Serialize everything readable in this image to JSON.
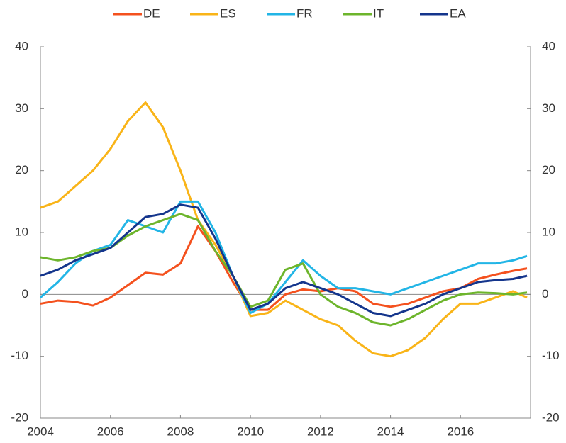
{
  "chart_data": {
    "type": "line",
    "x": [
      2004,
      2004.5,
      2005,
      2005.5,
      2006,
      2006.5,
      2007,
      2007.5,
      2008,
      2008.5,
      2009,
      2009.5,
      2010,
      2010.5,
      2011,
      2011.5,
      2012,
      2012.5,
      2013,
      2013.5,
      2014,
      2014.5,
      2015,
      2015.5,
      2016,
      2016.5,
      2017,
      2017.5,
      2017.9
    ],
    "series": [
      {
        "name": "DE",
        "color": "#f4511e",
        "values": [
          -1.5,
          -1,
          -1.2,
          -1.8,
          -0.5,
          1.5,
          3.5,
          3.2,
          5,
          11,
          7,
          2,
          -2.5,
          -2.5,
          0,
          0.8,
          0.5,
          1,
          0.5,
          -1.5,
          -2,
          -1.5,
          -0.5,
          0.5,
          1,
          2.5,
          3.2,
          3.8,
          4.2
        ]
      },
      {
        "name": "ES",
        "color": "#f9b418",
        "values": [
          14,
          15,
          17.5,
          20,
          23.5,
          28,
          31,
          27,
          20,
          12,
          8,
          3,
          -3.5,
          -3,
          -1,
          -2.5,
          -4,
          -5,
          -7.5,
          -9.5,
          -10,
          -9,
          -7,
          -4,
          -1.5,
          -1.5,
          -0.5,
          0.5,
          -0.5
        ]
      },
      {
        "name": "FR",
        "color": "#22b5e6",
        "values": [
          -0.5,
          2,
          5,
          7,
          8,
          12,
          11,
          10,
          15,
          15,
          10,
          3,
          -3,
          -1.5,
          2,
          5.5,
          3,
          1,
          1,
          0.5,
          0,
          1,
          2,
          3,
          4,
          5,
          5,
          5.5,
          6.2
        ]
      },
      {
        "name": "IT",
        "color": "#6db52c",
        "values": [
          6,
          5.5,
          6,
          7,
          7.5,
          9.5,
          11,
          12,
          13,
          12,
          7,
          3,
          -2,
          -1,
          4,
          5,
          0,
          -2,
          -3,
          -4.5,
          -5,
          -4,
          -2.5,
          -1,
          0,
          0.3,
          0.2,
          0,
          0.3
        ]
      },
      {
        "name": "EA",
        "color": "#14358c",
        "values": [
          3,
          4,
          5.5,
          6.5,
          7.5,
          10,
          12.5,
          13,
          14.5,
          14,
          9,
          3,
          -2.5,
          -1.5,
          1,
          2,
          1,
          0,
          -1.5,
          -3,
          -3.5,
          -2.5,
          -1.5,
          0,
          1,
          2,
          2.3,
          2.5,
          3
        ]
      }
    ],
    "xlim": [
      2004,
      2018
    ],
    "xticks": [
      2004,
      2006,
      2008,
      2010,
      2012,
      2014,
      2016
    ],
    "ylim": [
      -20,
      40
    ],
    "yticks": [
      -20,
      -10,
      0,
      10,
      20,
      30,
      40
    ],
    "y2lim": [
      -20,
      40
    ],
    "y2ticks": [
      -20,
      -10,
      0,
      10,
      20,
      30,
      40
    ],
    "legend": "top"
  }
}
